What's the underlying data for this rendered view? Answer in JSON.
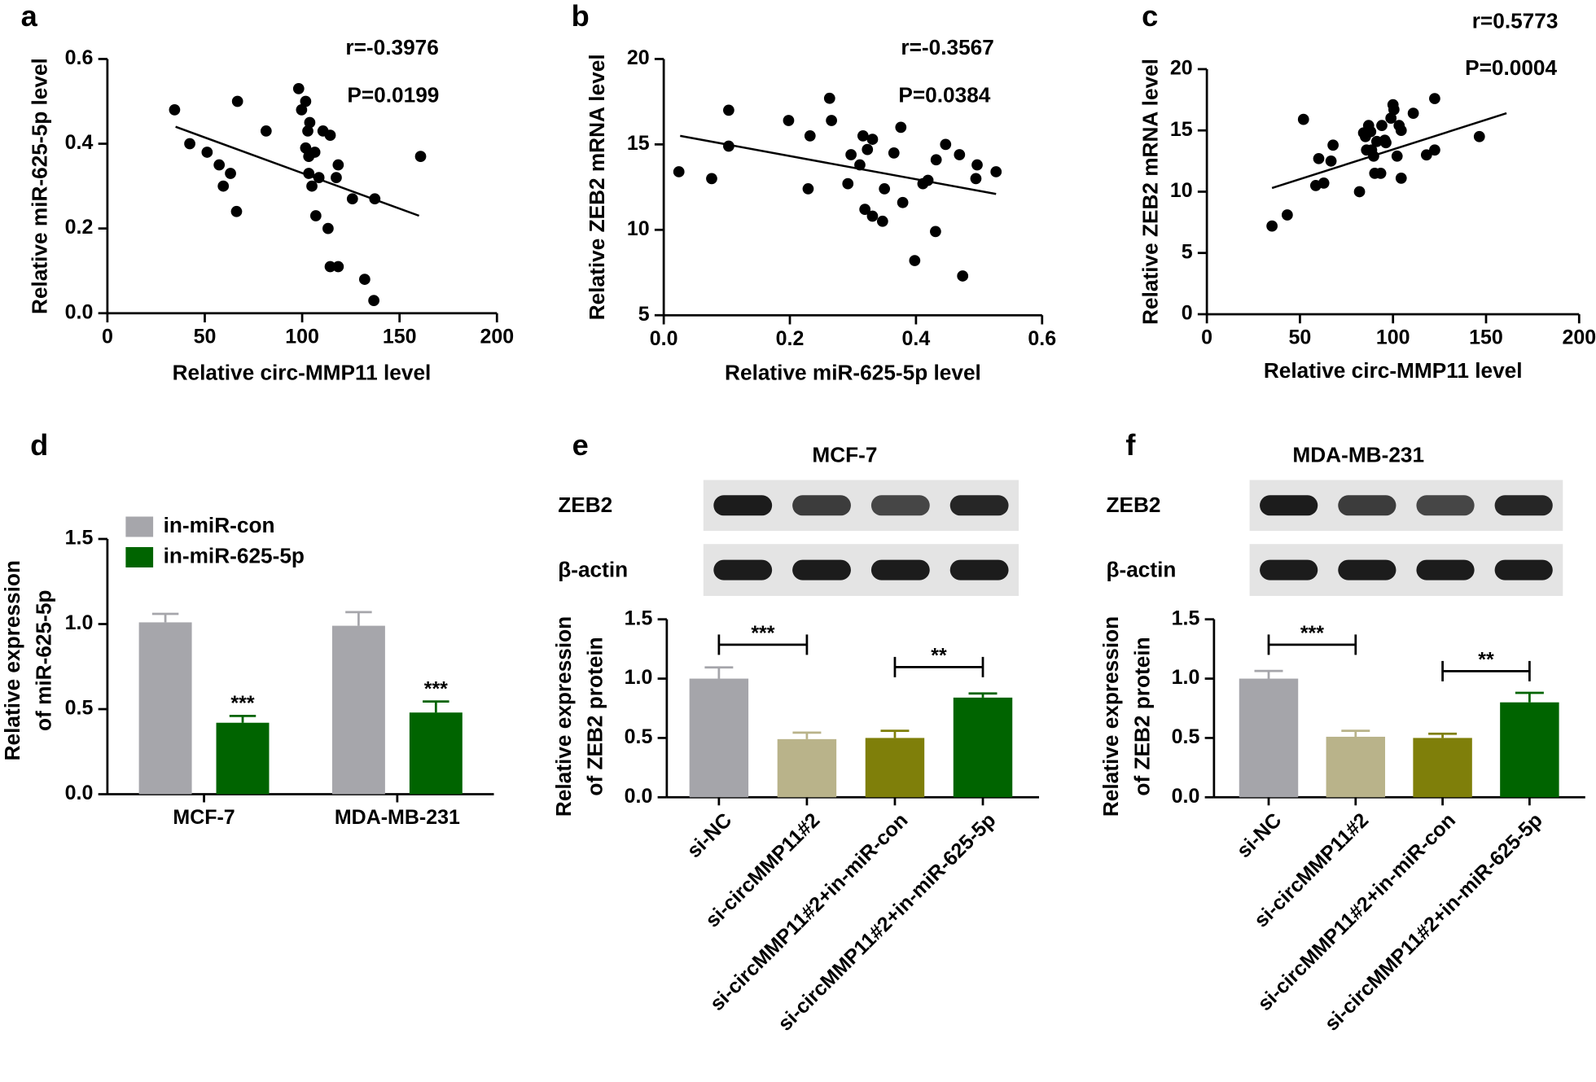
{
  "chart_data": [
    {
      "type": "scatter",
      "panel_label": "a",
      "xlabel": "Relative circ-MMP11 level",
      "ylabel": "Relative miR-625-5p level",
      "x": [
        34.5,
        42.3,
        51.2,
        57.4,
        59.5,
        63.2,
        66.3,
        66.8,
        81.5,
        98.2,
        99.7,
        101.8,
        102.9,
        103.4,
        101.8,
        103.9,
        103.4,
        105.0,
        106.5,
        107.0,
        108.6,
        110.7,
        113.3,
        114.4,
        114.4,
        117.5,
        118.5,
        118.5,
        125.8,
        132.1,
        136.8,
        137.3,
        160.8
      ],
      "y": [
        0.48,
        0.4,
        0.38,
        0.35,
        0.3,
        0.33,
        0.24,
        0.5,
        0.43,
        0.53,
        0.48,
        0.5,
        0.43,
        0.37,
        0.39,
        0.45,
        0.33,
        0.3,
        0.38,
        0.23,
        0.32,
        0.43,
        0.2,
        0.42,
        0.11,
        0.32,
        0.35,
        0.11,
        0.27,
        0.08,
        0.03,
        0.27,
        0.37
      ],
      "color": "#000000",
      "fit_line": {
        "x": [
          35,
          160
        ],
        "y": [
          0.44,
          0.23
        ]
      },
      "annotations": [
        "r=-0.3976",
        "P=0.0199"
      ],
      "xlim": [
        0,
        200
      ],
      "xticks": [
        0,
        50,
        100,
        150,
        200
      ],
      "ylim": [
        0,
        0.6
      ],
      "yticks": [
        {
          "value": 0,
          "label": "0.0"
        },
        0.2,
        0.4,
        0.6
      ]
    },
    {
      "type": "scatter",
      "panel_label": "b",
      "xlabel": "Relative miR-625-5p level",
      "ylabel": "Relative ZEB2 mRNA level",
      "x": [
        0.024,
        0.076,
        0.103,
        0.103,
        0.198,
        0.229,
        0.232,
        0.263,
        0.266,
        0.292,
        0.297,
        0.311,
        0.316,
        0.319,
        0.323,
        0.331,
        0.331,
        0.347,
        0.35,
        0.365,
        0.376,
        0.379,
        0.398,
        0.411,
        0.419,
        0.431,
        0.432,
        0.447,
        0.469,
        0.474,
        0.495,
        0.497,
        0.527
      ],
      "y": [
        13.4,
        13.0,
        17.0,
        14.9,
        16.4,
        12.4,
        15.5,
        17.7,
        16.4,
        12.7,
        14.4,
        13.8,
        15.5,
        11.2,
        14.7,
        15.3,
        10.8,
        10.5,
        12.4,
        14.5,
        16.0,
        11.6,
        8.2,
        12.7,
        12.9,
        9.9,
        14.1,
        15.0,
        14.4,
        7.3,
        13.0,
        13.8,
        13.4
      ],
      "color": "#000000",
      "fit_line": {
        "x": [
          0.026,
          0.527
        ],
        "y": [
          15.5,
          12.1
        ]
      },
      "annotations": [
        "r=-0.3567",
        "P=0.0384"
      ],
      "xlim": [
        0,
        0.6
      ],
      "xticks": [
        {
          "value": 0,
          "label": "0.0"
        },
        0.2,
        0.4,
        0.6
      ],
      "ylim": [
        5,
        20
      ],
      "yticks": [
        5,
        10,
        15,
        20
      ]
    },
    {
      "type": "scatter",
      "panel_label": "c",
      "xlabel": "Relative circ-MMP11 level",
      "ylabel": "Relative ZEB2 mRNA level",
      "x": [
        35.0,
        43.2,
        51.9,
        58.5,
        60.1,
        62.8,
        66.7,
        67.8,
        82.0,
        84.2,
        85.2,
        85.8,
        86.9,
        88.0,
        88.5,
        89.6,
        90.2,
        91.3,
        93.4,
        94.0,
        95.6,
        96.2,
        98.9,
        100.0,
        100.5,
        102.2,
        103.3,
        104.4,
        104.4,
        110.9,
        118.0,
        122.4,
        122.4,
        146.4
      ],
      "y": [
        7.2,
        8.1,
        15.9,
        10.5,
        12.7,
        10.7,
        12.5,
        13.8,
        10.0,
        14.8,
        14.5,
        13.4,
        15.4,
        14.9,
        13.4,
        12.9,
        11.5,
        14.1,
        11.5,
        15.4,
        14.2,
        14.0,
        16.0,
        17.1,
        16.7,
        12.9,
        15.4,
        11.1,
        15.0,
        16.4,
        13.0,
        13.4,
        17.6,
        14.5
      ],
      "color": "#000000",
      "fit_line": {
        "x": [
          35,
          161
        ],
        "y": [
          10.3,
          16.4
        ]
      },
      "annotations": [
        "r=0.5773",
        "P=0.0004"
      ],
      "xlim": [
        0,
        200
      ],
      "xticks": [
        0,
        50,
        100,
        150,
        200
      ],
      "ylim": [
        0,
        20
      ],
      "yticks": [
        0,
        5,
        10,
        15,
        20
      ]
    },
    {
      "type": "grouped_bar",
      "panel_label": "d",
      "ylabel": [
        "Relative expression",
        "of miR-625-5p"
      ],
      "categories": [
        "MCF-7",
        "MDA-MB-231"
      ],
      "series": [
        {
          "name": "in-miR-con",
          "color": "#a6a6ab",
          "values": [
            1.01,
            0.99
          ],
          "errors": [
            0.05,
            0.08
          ]
        },
        {
          "name": "in-miR-625-5p",
          "color": "#006400",
          "values": [
            0.42,
            0.48
          ],
          "errors": [
            0.04,
            0.065
          ],
          "significance": [
            "***",
            "***"
          ]
        }
      ],
      "ylim": [
        0,
        1.5
      ],
      "yticks": [
        {
          "value": 0,
          "label": "0.0"
        },
        0.5,
        {
          "value": 1,
          "label": "1.0"
        },
        1.5
      ]
    },
    {
      "type": "bar",
      "panel_label": "e",
      "title": "MCF-7",
      "blot_labels": [
        "ZEB2",
        "β-actin"
      ],
      "ylabel": [
        "Relative expression",
        "of ZEB2 protein"
      ],
      "categories": [
        "si-NC",
        "si-circMMP11#2",
        "si-circMMP11#2+in-miR-con",
        "si-circMMP11#2+in-miR-625-5p"
      ],
      "values": [
        1.0,
        0.49,
        0.5,
        0.84
      ],
      "errors": [
        0.095,
        0.055,
        0.06,
        0.035
      ],
      "colors": [
        "#a5a5aa",
        "#b9b38a",
        "#7f7f0a",
        "#006400"
      ],
      "comparisons": [
        {
          "pair": [
            "si-NC",
            "si-circMMP11#2"
          ],
          "label": "***"
        },
        {
          "pair": [
            "si-circMMP11#2+in-miR-con",
            "si-circMMP11#2+in-miR-625-5p"
          ],
          "label": "**"
        }
      ],
      "ylim": [
        0,
        1.5
      ],
      "yticks": [
        {
          "value": 0,
          "label": "0.0"
        },
        0.5,
        {
          "value": 1,
          "label": "1.0"
        },
        1.5
      ]
    },
    {
      "type": "bar",
      "panel_label": "f",
      "title": "MDA-MB-231",
      "blot_labels": [
        "ZEB2",
        "β-actin"
      ],
      "ylabel": [
        "Relative expression",
        "of ZEB2 protein"
      ],
      "categories": [
        "si-NC",
        "si-circMMP11#2",
        "si-circMMP11#2+in-miR-con",
        "si-circMMP11#2+in-miR-625-5p"
      ],
      "values": [
        1.0,
        0.51,
        0.5,
        0.8
      ],
      "errors": [
        0.065,
        0.05,
        0.035,
        0.08
      ],
      "colors": [
        "#a5a5aa",
        "#b9b38a",
        "#7f7f0a",
        "#006400"
      ],
      "comparisons": [
        {
          "pair": [
            "si-NC",
            "si-circMMP11#2"
          ],
          "label": "***"
        },
        {
          "pair": [
            "si-circMMP11#2+in-miR-con",
            "si-circMMP11#2+in-miR-625-5p"
          ],
          "label": "**"
        }
      ],
      "ylim": [
        0,
        1.5
      ],
      "yticks": [
        {
          "value": 0,
          "label": "0.0"
        },
        0.5,
        {
          "value": 1,
          "label": "1.0"
        },
        1.5
      ]
    }
  ]
}
